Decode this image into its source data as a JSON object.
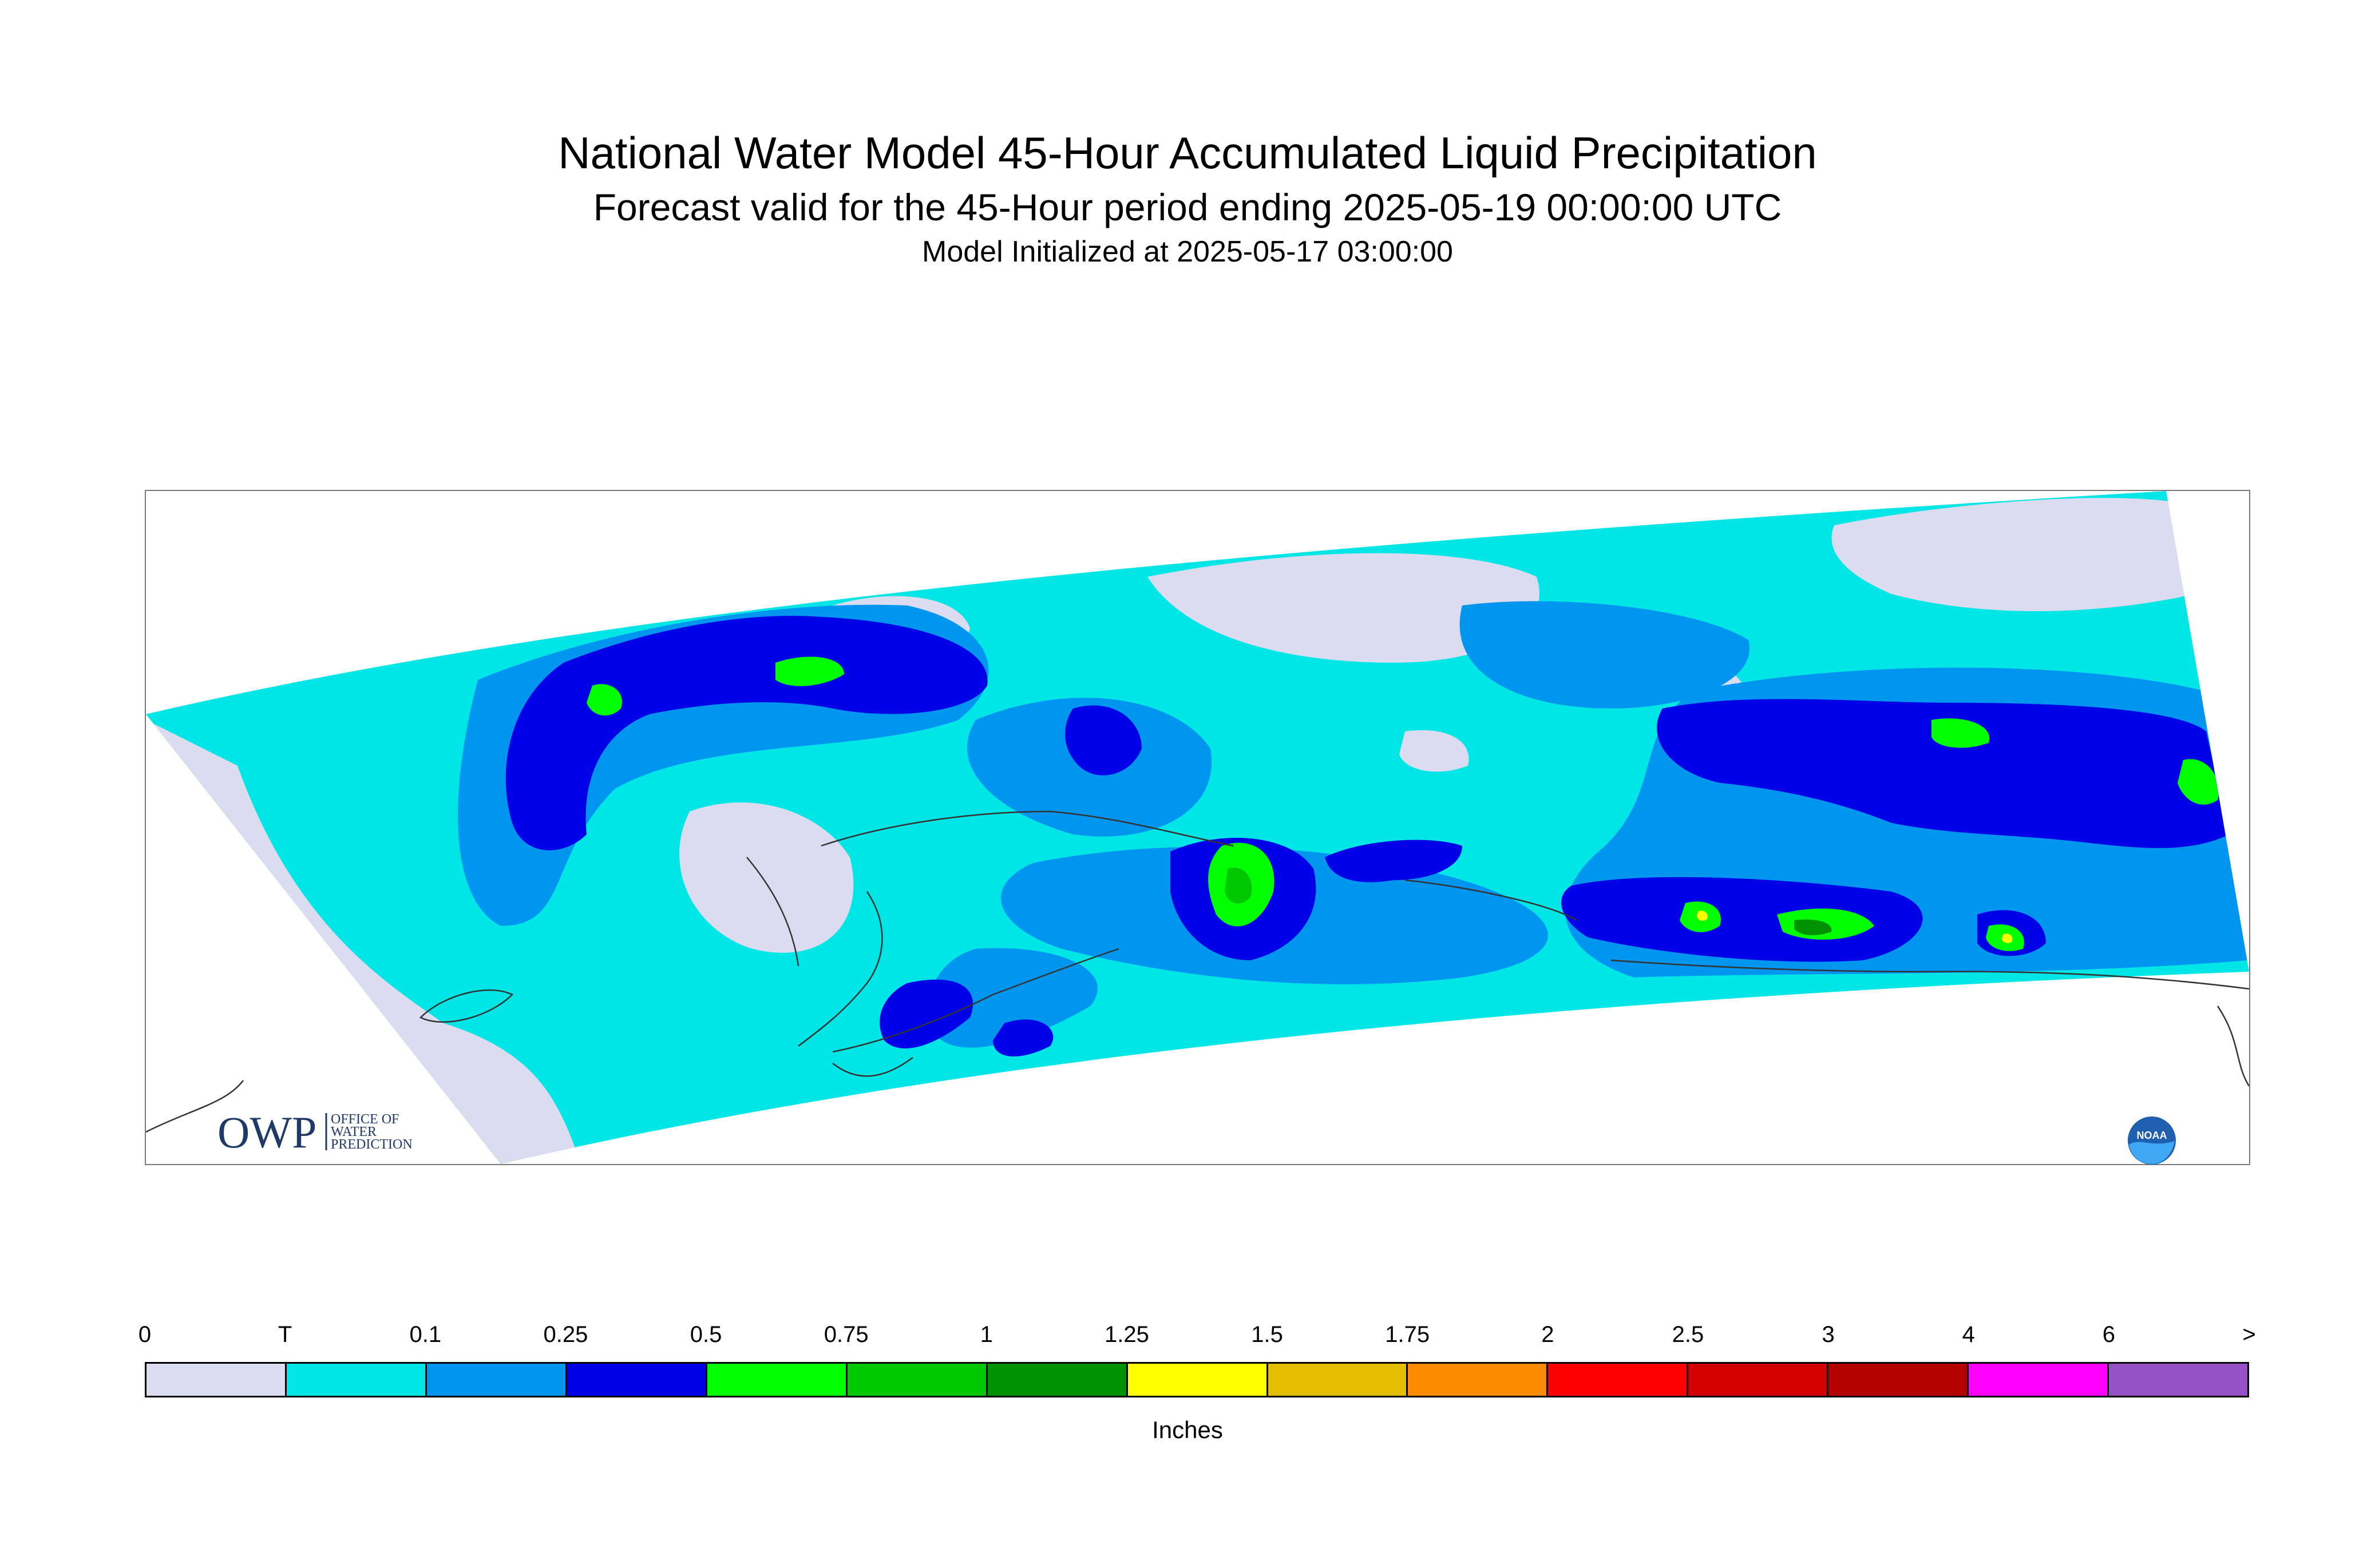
{
  "header": {
    "title": "National Water Model 45-Hour Accumulated Liquid Precipitation",
    "subtitle": "Forecast valid for the 45-Hour period ending 2025-05-19 00:00:00 UTC",
    "init": "Model Initialized at 2025-05-17 03:00:00"
  },
  "logos": {
    "owp_main": "OWP",
    "owp_line1": "OFFICE OF",
    "owp_line2": "WATER",
    "owp_line3": "PREDICTION",
    "noaa": "NOAA"
  },
  "legend": {
    "units": "Inches",
    "ticks": [
      "0",
      "T",
      "0.1",
      "0.25",
      "0.5",
      "0.75",
      "1",
      "1.25",
      "1.5",
      "1.75",
      "2",
      "2.5",
      "3",
      "4",
      "6",
      ">"
    ],
    "colors": [
      "#dcdcf0",
      "#00e5e5",
      "#0096f0",
      "#0000e6",
      "#00ff00",
      "#00c800",
      "#009100",
      "#ffff00",
      "#e6be00",
      "#ff8c00",
      "#ff0000",
      "#d20000",
      "#b40000",
      "#ff00ff",
      "#9650c8"
    ]
  },
  "map_colors": {
    "none": "#dcdcf0",
    "trace": "#00e5e5",
    "light": "#0096f0",
    "medium": "#0000e6",
    "heavy1": "#00ff00",
    "heavy2": "#00c800",
    "heavy3": "#009100",
    "peak": "#ffff00"
  }
}
